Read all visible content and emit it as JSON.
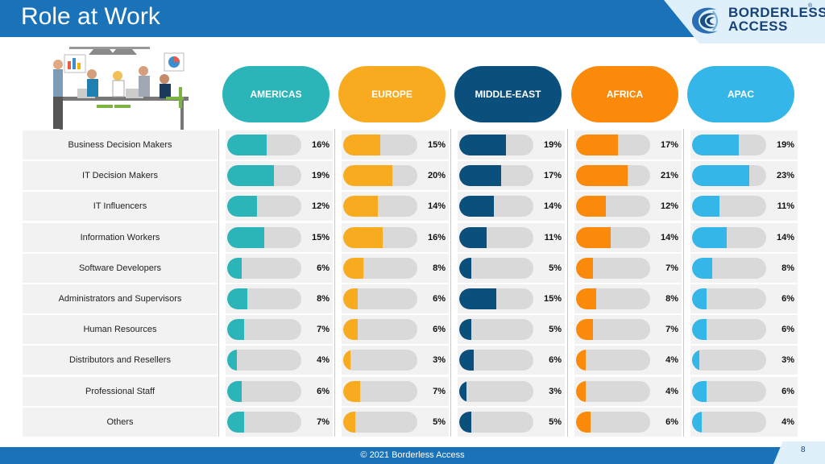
{
  "header": {
    "title": "Role at Work"
  },
  "logo": {
    "line1": "BORDERLESS",
    "line2": "ACCESS",
    "reg": "®"
  },
  "footer": {
    "copyright": "© 2021 Borderless Access",
    "page": "8"
  },
  "chart_data": {
    "type": "bar",
    "categories": [
      "Business Decision Makers",
      "IT Decision Makers",
      "IT Influencers",
      "Information Workers",
      "Software Developers",
      "Administrators and Supervisors",
      "Human Resources",
      "Distributors and Resellers",
      "Professional Staff",
      "Others"
    ],
    "series": [
      {
        "name": "AMERICAS",
        "color": "#2bb5b8",
        "values": [
          16,
          19,
          12,
          15,
          6,
          8,
          7,
          4,
          6,
          7
        ],
        "labels": [
          "16%",
          "19%",
          "12%",
          "15%",
          "6%",
          "8%",
          "7%",
          "4%",
          "6%",
          "7%"
        ]
      },
      {
        "name": "EUROPE",
        "color": "#f9ab20",
        "values": [
          15,
          20,
          14,
          16,
          8,
          6,
          6,
          3,
          7,
          5
        ],
        "labels": [
          "15%",
          "20%",
          "14%",
          "16%",
          "8%",
          "6%",
          "6%",
          "3%",
          "7%",
          "5%"
        ]
      },
      {
        "name": "MIDDLE-EAST",
        "color": "#0b4f7c",
        "values": [
          19,
          17,
          14,
          11,
          5,
          15,
          5,
          6,
          3,
          5
        ],
        "labels": [
          "19%",
          "17%",
          "14%",
          "11%",
          "5%",
          "15%",
          "5%",
          "6%",
          "3%",
          "5%"
        ]
      },
      {
        "name": "AFRICA",
        "color": "#fb8a0b",
        "values": [
          17,
          21,
          12,
          14,
          7,
          8,
          7,
          4,
          4,
          6
        ],
        "labels": [
          "17%",
          "21%",
          "12%",
          "14%",
          "7%",
          "8%",
          "7%",
          "4%",
          "4%",
          "6%"
        ]
      },
      {
        "name": "APAC",
        "color": "#35b6e8",
        "values": [
          19,
          23,
          11,
          14,
          8,
          6,
          6,
          3,
          6,
          4
        ],
        "labels": [
          "19%",
          "23%",
          "11%",
          "14%",
          "8%",
          "6%",
          "6%",
          "3%",
          "6%",
          "4%"
        ]
      }
    ],
    "track_color": "#d9d9d9"
  }
}
